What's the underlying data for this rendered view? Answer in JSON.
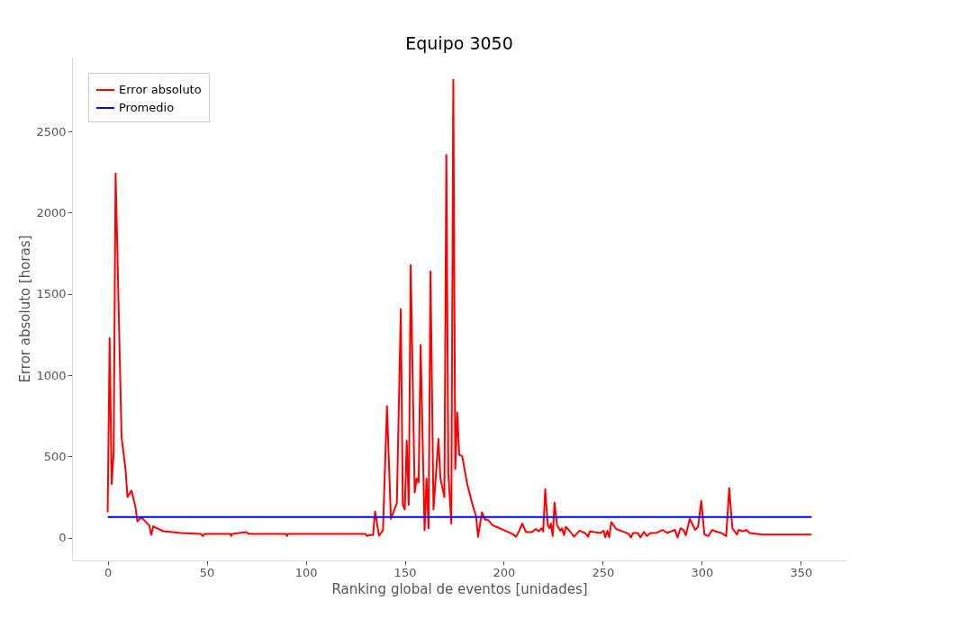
{
  "chart_data": {
    "type": "line",
    "title": "Equipo 3050",
    "xlabel": "Ranking global de eventos [unidades]",
    "ylabel": "Error absoluto [horas]",
    "xlim": [
      -18,
      373
    ],
    "ylim": [
      -140,
      2960
    ],
    "xticks": [
      0,
      50,
      100,
      150,
      200,
      250,
      300,
      350
    ],
    "yticks": [
      0,
      500,
      1000,
      1500,
      2000,
      2500
    ],
    "grid": false,
    "legend": "top left",
    "line_style": "solid",
    "marker": "none",
    "series": [
      {
        "name": "Error absoluto",
        "color": "#ff0000",
        "x": [
          0,
          1,
          2,
          3,
          4,
          7,
          9,
          10,
          12,
          14,
          15,
          17,
          21,
          22,
          23,
          28,
          37,
          47,
          48,
          49,
          62,
          62.3,
          63,
          70,
          71,
          90,
          90.5,
          91,
          130,
          131,
          132,
          134,
          135,
          137,
          139,
          141,
          143,
          146,
          148,
          149,
          150,
          151,
          152,
          153,
          155,
          156,
          157,
          158,
          160,
          161,
          162,
          163,
          164.5,
          167,
          168,
          170,
          171,
          172,
          173.5,
          174.5,
          175.5,
          176.5,
          177.5,
          179,
          181.5,
          184.5,
          186,
          187,
          189,
          190.5,
          192,
          194.5,
          197.1,
          204.2,
          206.2,
          207.8,
          209.3,
          211.2,
          214.3,
          216.2,
          217.7,
          219,
          219.9,
          220.9,
          222.2,
          223.1,
          223.8,
          224.7,
          225.6,
          226.9,
          228.5,
          229.4,
          230.4,
          231.3,
          232.8,
          235.5,
          238.2,
          241,
          242.6,
          243.4,
          248.8,
          250.4,
          251.2,
          252.3,
          253.2,
          254.3,
          256.7,
          263,
          264.2,
          265.3,
          267.7,
          268.9,
          270.8,
          272.3,
          273.9,
          277,
          280.2,
          282.5,
          286.4,
          287.7,
          289.2,
          290.8,
          291.9,
          293.9,
          296.6,
          298.1,
          299.7,
          301.3,
          303.3,
          305.2,
          306.8,
          309.9,
          312.3,
          313.8,
          315.4,
          317.8,
          318.5,
          320.9,
          322.5,
          324.1,
          330.3,
          338.2,
          355.4
        ],
        "values": [
          156,
          1227,
          330,
          520,
          2240,
          620,
          420,
          250,
          290,
          190,
          100,
          125,
          75,
          17,
          70,
          40,
          29,
          23,
          10,
          23,
          23,
          10,
          23,
          35,
          23,
          23,
          10,
          23,
          23,
          10,
          17,
          17,
          162,
          12,
          46,
          810,
          116,
          214,
          1406,
          202,
          174,
          596,
          202,
          1678,
          278,
          365,
          340,
          1186,
          46,
          365,
          58,
          1638,
          174,
          608,
          365,
          250,
          2355,
          394,
          87,
          2818,
          422,
          770,
          509,
          503,
          330,
          191,
          133,
          5,
          156,
          110,
          110,
          75,
          62,
          24,
          6,
          43,
          87,
          35,
          35,
          54,
          39,
          58,
          39,
          299,
          77,
          58,
          87,
          10,
          216,
          77,
          43,
          58,
          15,
          67,
          48,
          6,
          43,
          29,
          6,
          39,
          29,
          43,
          2,
          43,
          2,
          96,
          54,
          24,
          2,
          29,
          29,
          2,
          35,
          10,
          29,
          29,
          48,
          29,
          48,
          2,
          58,
          48,
          15,
          116,
          48,
          67,
          227,
          19,
          10,
          48,
          39,
          29,
          10,
          305,
          58,
          19,
          48,
          39,
          48,
          29,
          19,
          19,
          19
        ]
      },
      {
        "name": "Promedio",
        "color": "#0000ff",
        "x": [
          0,
          355.4
        ],
        "values": [
          127,
          127
        ]
      }
    ]
  }
}
